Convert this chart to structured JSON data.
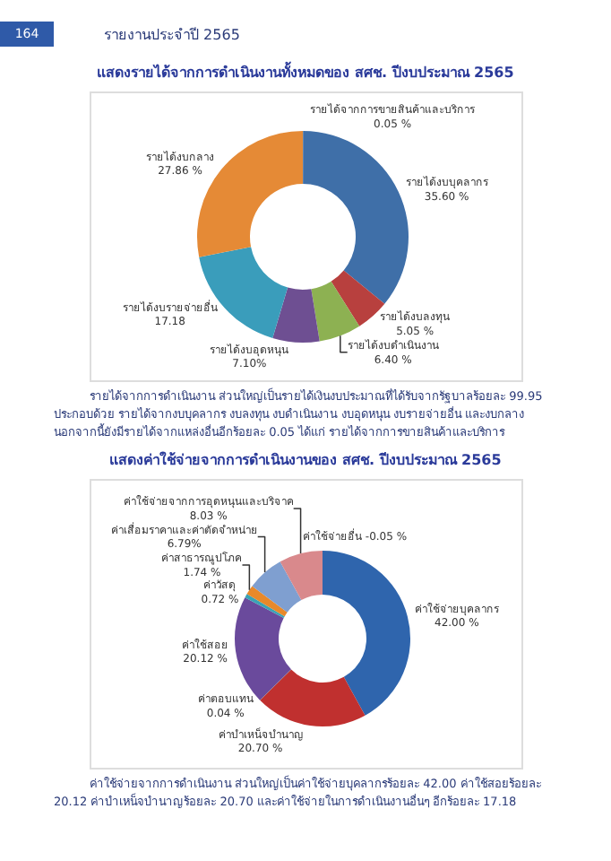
{
  "chart_data": [
    {
      "type": "donut",
      "title": "แสดงรายได้จากการดำเนินงานทั้งหมดของ สศช. ปีงบประมาณ 2565",
      "categories": [
        "รายได้จากการขายสินค้าและบริการ",
        "รายได้งบบุคลากร",
        "รายได้งบลงทุน",
        "รายได้งบดำเนินงาน",
        "รายได้งบอุดหนุน",
        "รายได้งบรายจ่ายอื่น",
        "รายได้งบกลาง"
      ],
      "values": [
        0.05,
        35.6,
        5.05,
        6.4,
        7.1,
        17.18,
        27.86
      ],
      "value_labels": [
        "0.05 %",
        "35.60 %",
        "5.05 %",
        "6.40 %",
        "7.10%",
        "17.18",
        "27.86 %"
      ],
      "colors": [
        "#404040",
        "#3f6fa8",
        "#b8403e",
        "#8db152",
        "#6e4f92",
        "#3a9dbb",
        "#e58a36"
      ],
      "legend": false,
      "annotations": [
        "164",
        "รายงานประจำปี 2565",
        "รายได้จากการดำเนินงาน ส่วนใหญ่เป็นรายได้เงินงบประมาณที่ได้รับจากรัฐบาลร้อยละ 99.95 ประกอบด้วย รายได้จากงบบุคลากร งบลงทุน งบดำเนินงาน งบอุดหนุน งบรายจ่ายอื่น และงบกลาง นอกจากนี้ยังมีรายได้จากแหล่งอื่นอีกร้อยละ 0.05 ได้แก่ รายได้จากการขายสินค้าและบริการ"
      ]
    },
    {
      "type": "donut",
      "title": "แสดงค่าใช้จ่ายจากการดำเนินงานของ สศช. ปีงบประมาณ 2565",
      "categories": [
        "ค่าใช้จ่ายบุคลากร",
        "ค่าบำเหน็จบำนาญ",
        "ค่าตอบแทน",
        "ค่าใช้สอย",
        "ค่าวัสดุ",
        "ค่าสาธารณูปโภค",
        "ค่าเสื่อมราคาและค่าตัดจำหน่าย",
        "ค่าใช้จ่ายจากการอุดหนุนและบริจาค"
      ],
      "values": [
        42.0,
        20.7,
        0.04,
        20.12,
        0.72,
        1.74,
        6.79,
        8.03
      ],
      "value_labels": [
        "42.00 %",
        "20.70 %",
        "0.04 %",
        "20.12 %",
        "0.72 %",
        "1.74 %",
        "6.79%",
        "8.03 %"
      ],
      "colors": [
        "#2f65ad",
        "#c0302f",
        "#7a9a3c",
        "#6a4a9c",
        "#3aa3b5",
        "#e8892a",
        "#7f9fd0",
        "#d9898c"
      ],
      "legend": false,
      "annotations": [
        "ค่าใช้จ่ายอื่น -0.05 %",
        "ค่าใช้จ่ายจากการดำเนินงาน ส่วนใหญ่เป็นค่าใช้จ่ายบุคลากรร้อยละ 42.00 ค่าใช้สอยร้อยละ 20.12 ค่าบำเหน็จบำนาญร้อยละ 20.70 และค่าใช้จ่ายในการดำเนินงานอื่นๆ อีกร้อยละ 17.18"
      ]
    }
  ]
}
